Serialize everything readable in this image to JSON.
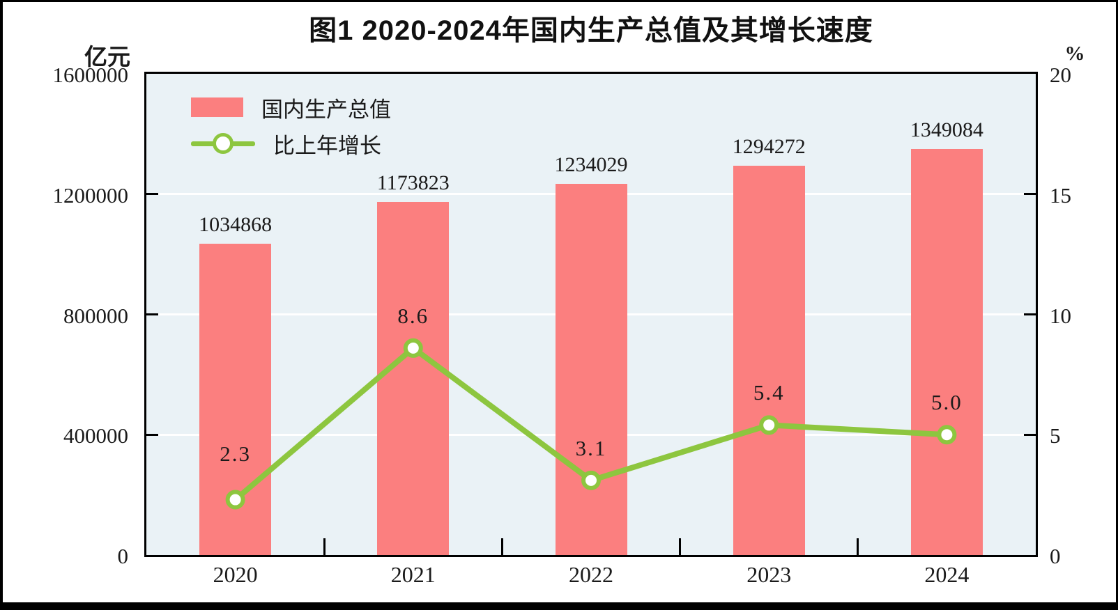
{
  "page": {
    "title": "图1  2020-2024年国内生产总值及其增长速度",
    "left_axis_unit": "亿元",
    "right_axis_unit": "%"
  },
  "legend": {
    "items": [
      {
        "label": "国内生产总值",
        "type": "bar",
        "color": "#FB7F7F"
      },
      {
        "label": "比上年增长",
        "type": "line",
        "color": "#8DC63F"
      }
    ]
  },
  "chart_data": {
    "type": "bar+line combo",
    "title": "图1 2020-2024年国内生产总值及其增长速度",
    "categories": [
      "2020",
      "2021",
      "2022",
      "2023",
      "2024"
    ],
    "series": [
      {
        "name": "国内生产总值",
        "type": "bar",
        "axis": "left",
        "unit": "亿元",
        "color": "#FB7F7F",
        "values": [
          1034868,
          1173823,
          1234029,
          1294272,
          1349084
        ],
        "value_labels": [
          "1034868",
          "1173823",
          "1234029",
          "1294272",
          "1349084"
        ]
      },
      {
        "name": "比上年增长",
        "type": "line",
        "axis": "right",
        "unit": "%",
        "color": "#8DC63F",
        "marker": "circle-white-fill-green-stroke",
        "values": [
          2.3,
          8.6,
          3.1,
          5.4,
          5.0
        ],
        "value_labels": [
          "2.3",
          "8.6",
          "3.1",
          "5.4",
          "5.0"
        ]
      }
    ],
    "left_axis": {
      "label": "亿元",
      "min": 0,
      "max": 1600000,
      "ticks": [
        0,
        400000,
        800000,
        1200000,
        1600000
      ],
      "tick_labels": [
        "0",
        "400000",
        "800000",
        "1200000",
        "1600000"
      ]
    },
    "right_axis": {
      "label": "%",
      "min": 0,
      "max": 20,
      "ticks": [
        0,
        5,
        10,
        15,
        20
      ],
      "tick_labels": [
        "0",
        "5",
        "10",
        "15",
        "20"
      ]
    },
    "grid": "horizontal-white-lines-at-interior-ticks",
    "legend_position": "top-left-inside-plot",
    "plot_bg_color": "#EAF2F6",
    "plot_border_color": "#000000",
    "text_color": "#1a1a1a"
  }
}
